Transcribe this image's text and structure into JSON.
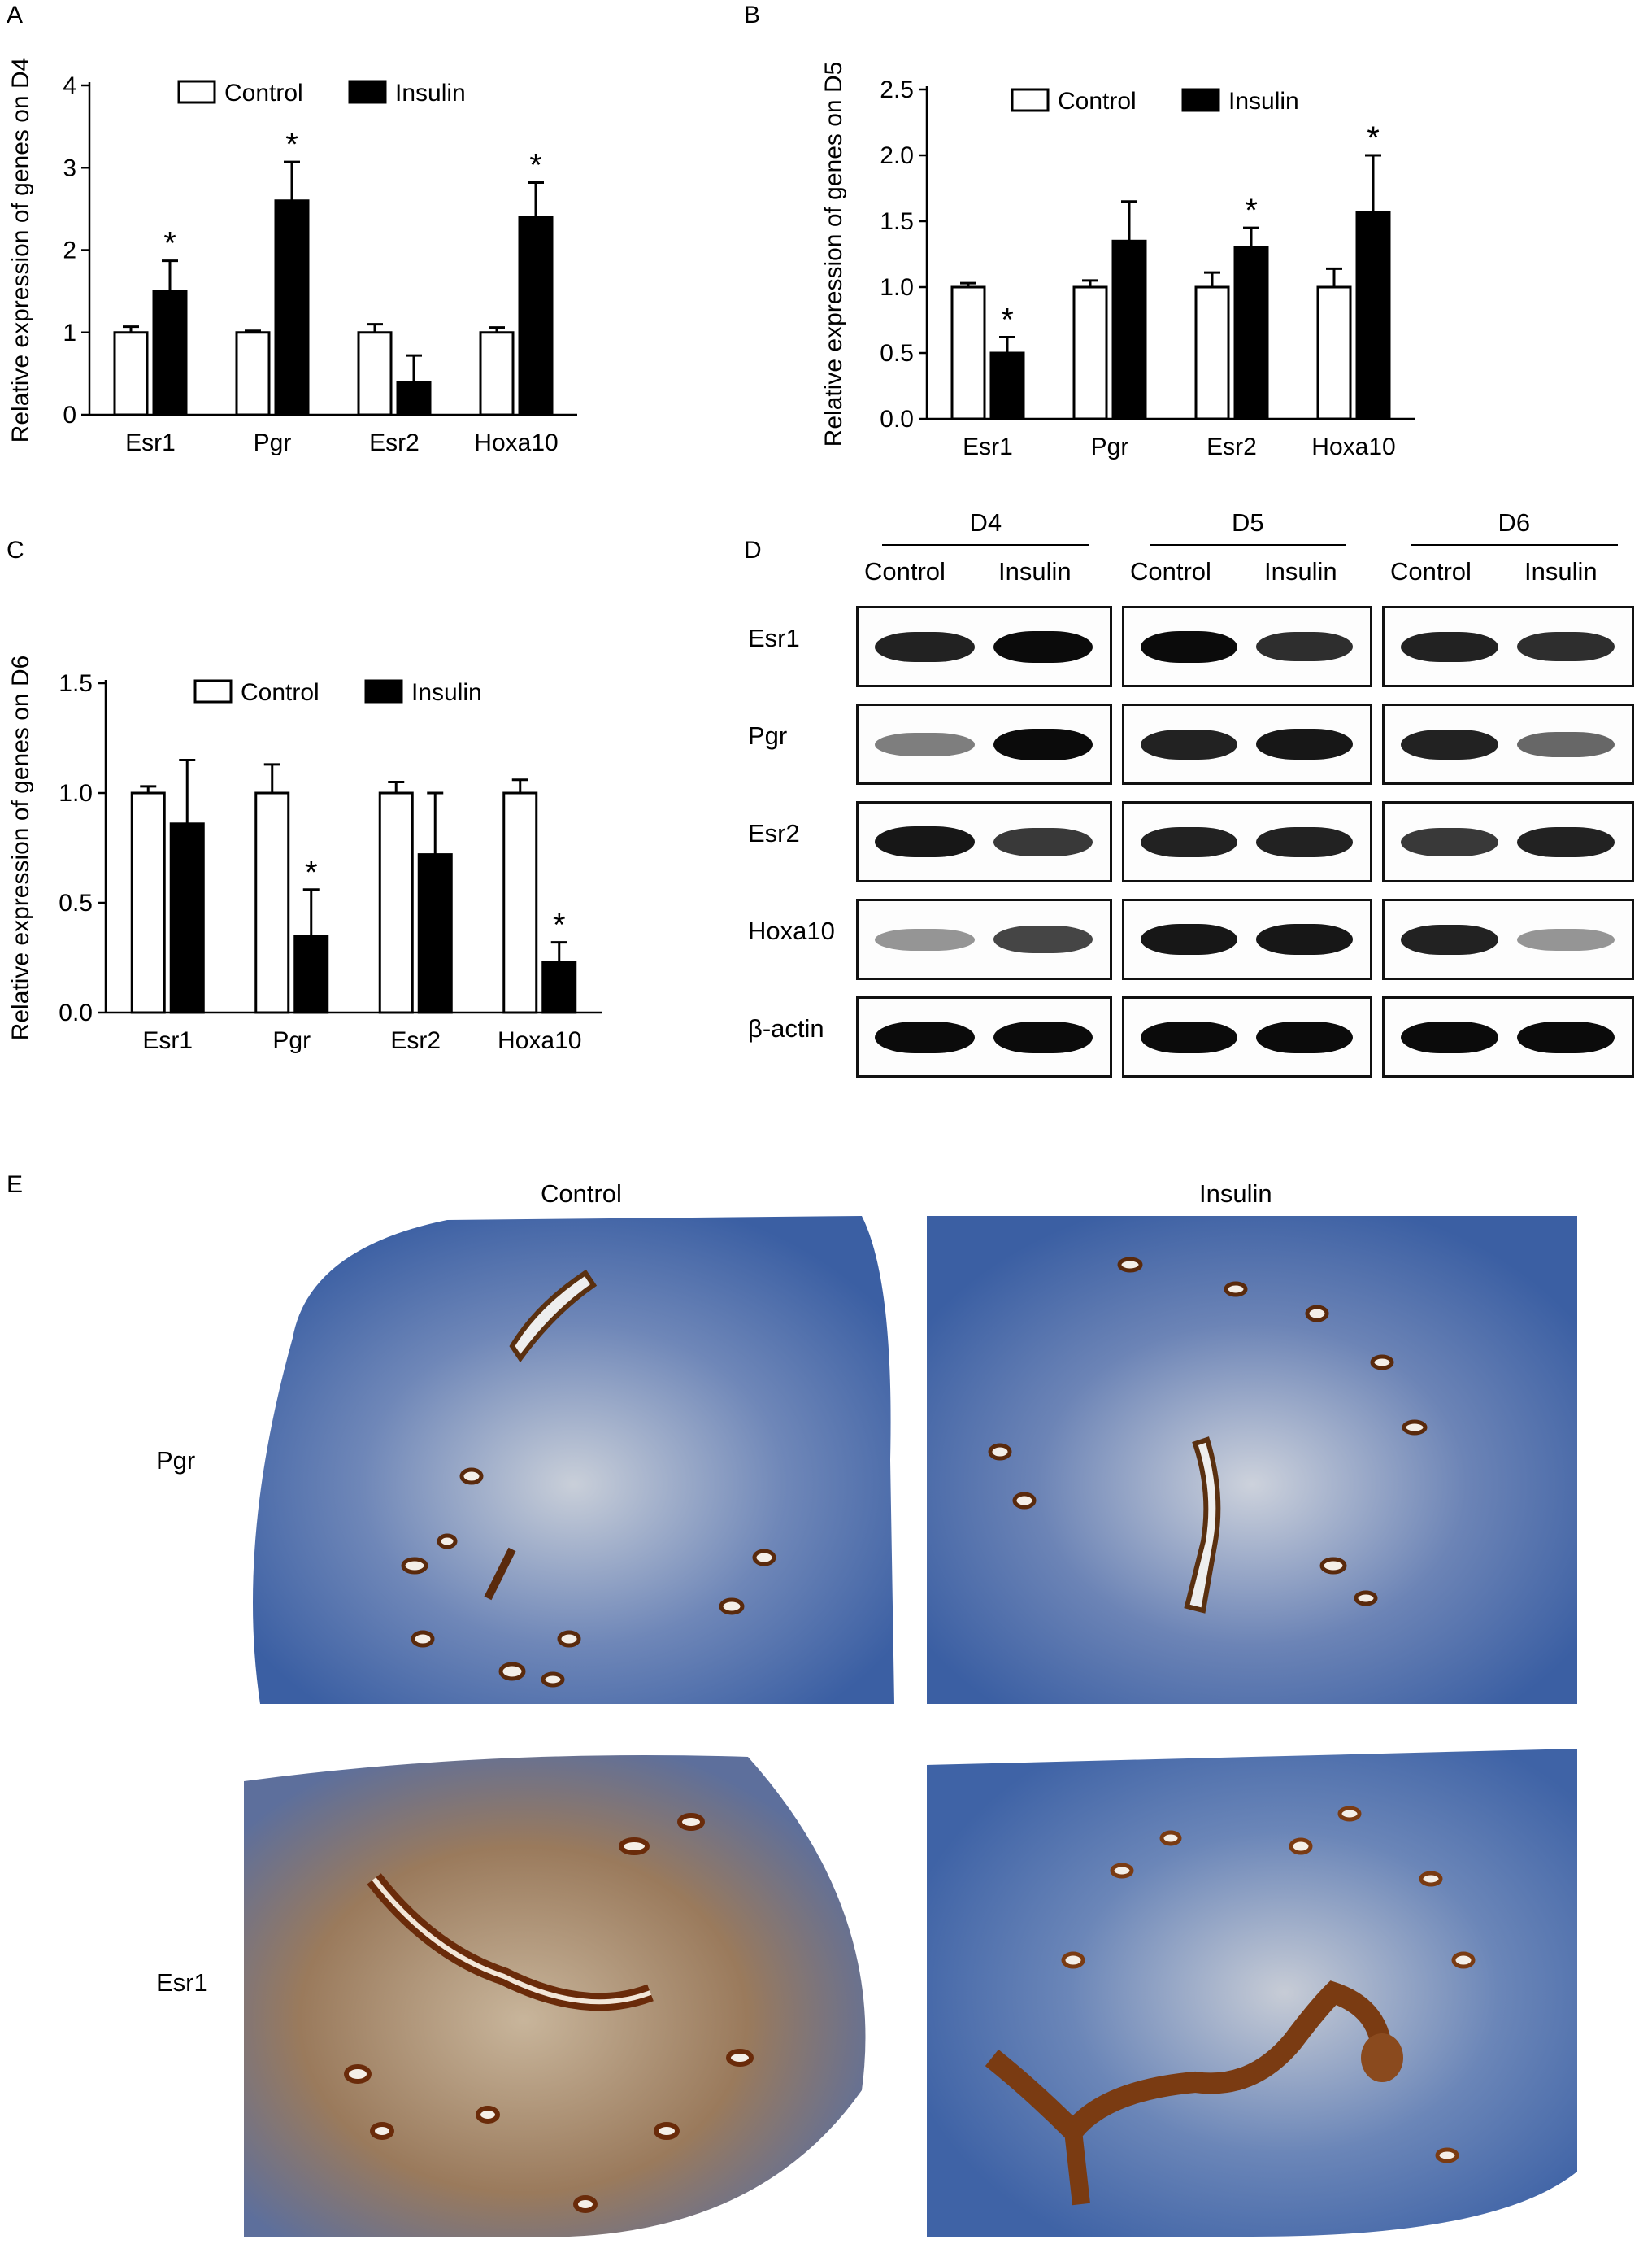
{
  "panels": {
    "A": "A",
    "B": "B",
    "C": "C",
    "D": "D",
    "E": "E"
  },
  "legend": {
    "control": "Control",
    "insulin": "Insulin"
  },
  "significance_marker": "*",
  "colors": {
    "control_fill": "#ffffff",
    "insulin_fill": "#000000",
    "tissue_stain": "#3b63a8",
    "dab_brown": "#7a3b12"
  },
  "chart_data": [
    {
      "panel": "A",
      "type": "bar",
      "ylabel": "Relative expression of genes on D4",
      "categories": [
        "Esr1",
        "Pgr",
        "Esr2",
        "Hoxa10"
      ],
      "ylim": [
        0,
        4
      ],
      "yticks": [
        "0",
        "1",
        "2",
        "3",
        "4"
      ],
      "series": [
        {
          "name": "Control",
          "values": [
            1.0,
            1.0,
            1.0,
            1.0
          ],
          "errors": [
            0.07,
            0.02,
            0.1,
            0.06
          ]
        },
        {
          "name": "Insulin",
          "values": [
            1.5,
            2.6,
            0.4,
            2.4
          ],
          "errors": [
            0.37,
            0.47,
            0.32,
            0.42
          ],
          "significant": [
            true,
            true,
            false,
            true
          ]
        }
      ]
    },
    {
      "panel": "B",
      "type": "bar",
      "ylabel": "Relative expression of genes on D5",
      "categories": [
        "Esr1",
        "Pgr",
        "Esr2",
        "Hoxa10"
      ],
      "ylim": [
        0,
        2.5
      ],
      "yticks": [
        "0.0",
        "0.5",
        "1.0",
        "1.5",
        "2.0",
        "2.5"
      ],
      "series": [
        {
          "name": "Control",
          "values": [
            1.0,
            1.0,
            1.0,
            1.0
          ],
          "errors": [
            0.03,
            0.05,
            0.11,
            0.14
          ]
        },
        {
          "name": "Insulin",
          "values": [
            0.5,
            1.35,
            1.3,
            1.57
          ],
          "errors": [
            0.12,
            0.3,
            0.15,
            0.43
          ],
          "significant": [
            true,
            false,
            true,
            true
          ]
        }
      ]
    },
    {
      "panel": "C",
      "type": "bar",
      "ylabel": "Relative expression of genes on D6",
      "categories": [
        "Esr1",
        "Pgr",
        "Esr2",
        "Hoxa10"
      ],
      "ylim": [
        0,
        1.5
      ],
      "yticks": [
        "0.0",
        "0.5",
        "1.0",
        "1.5"
      ],
      "series": [
        {
          "name": "Control",
          "values": [
            1.0,
            1.0,
            1.0,
            1.0
          ],
          "errors": [
            0.03,
            0.13,
            0.05,
            0.06
          ]
        },
        {
          "name": "Insulin",
          "values": [
            0.86,
            0.35,
            0.72,
            0.23
          ],
          "errors": [
            0.29,
            0.21,
            0.28,
            0.09
          ],
          "significant": [
            false,
            true,
            false,
            true
          ]
        }
      ]
    }
  ],
  "western_blot": {
    "days": [
      "D4",
      "D5",
      "D6"
    ],
    "conditions": [
      "Control",
      "Insulin"
    ],
    "proteins": [
      "Esr1",
      "Pgr",
      "Esr2",
      "Hoxa10",
      "β-actin"
    ],
    "band_intensity": [
      [
        [
          0.85,
          0.95
        ],
        [
          0.95,
          0.8
        ],
        [
          0.85,
          0.8
        ]
      ],
      [
        [
          0.45,
          0.95
        ],
        [
          0.85,
          0.9
        ],
        [
          0.85,
          0.55
        ]
      ],
      [
        [
          0.9,
          0.75
        ],
        [
          0.85,
          0.85
        ],
        [
          0.75,
          0.85
        ]
      ],
      [
        [
          0.35,
          0.7
        ],
        [
          0.9,
          0.9
        ],
        [
          0.85,
          0.35
        ]
      ],
      [
        [
          0.95,
          0.95
        ],
        [
          0.95,
          0.95
        ],
        [
          0.95,
          0.95
        ]
      ]
    ]
  },
  "ihc": {
    "columns": [
      "Control",
      "Insulin"
    ],
    "rows": [
      "Pgr",
      "Esr1"
    ]
  }
}
